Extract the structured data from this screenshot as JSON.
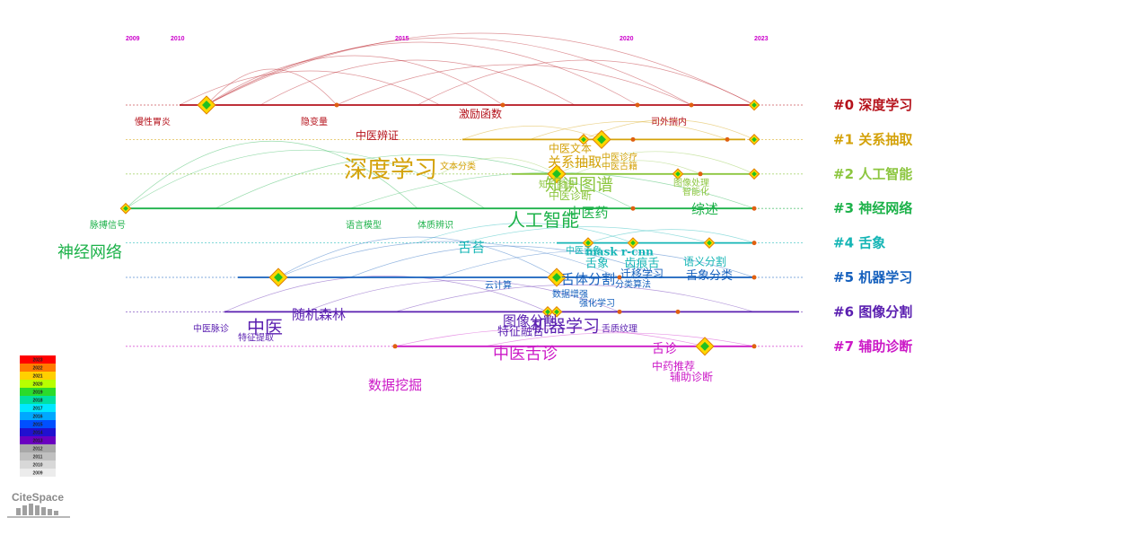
{
  "years": [
    {
      "label": "2009",
      "year": 2009
    },
    {
      "label": "2010",
      "year": 2010
    },
    {
      "label": "2015",
      "year": 2015
    },
    {
      "label": "2020",
      "year": 2020
    },
    {
      "label": "2023",
      "year": 2023
    }
  ],
  "year_label_color": "#cc00cc",
  "clusters": [
    {
      "id": "#0",
      "name": "深度学习",
      "color": "#b5121b",
      "start": 2010.2,
      "end": 2023
    },
    {
      "id": "#1",
      "name": "关系抽取",
      "color": "#d4a20a",
      "start": 2016.5,
      "end": 2022.8
    },
    {
      "id": "#2",
      "name": "人工智能",
      "color": "#8cc63f",
      "start": 2017.6,
      "end": 2023
    },
    {
      "id": "#3",
      "name": "神经网络",
      "color": "#1db24a",
      "start": 2009,
      "end": 2023
    },
    {
      "id": "#4",
      "name": "舌象",
      "color": "#14b5b5",
      "start": 2018.6,
      "end": 2023
    },
    {
      "id": "#5",
      "name": "机器学习",
      "color": "#1560bd",
      "start": 2011.5,
      "end": 2023
    },
    {
      "id": "#6",
      "name": "图像分割",
      "color": "#5a1fb0",
      "start": 2011.2,
      "end": 2024
    },
    {
      "id": "#7",
      "name": "辅助诊断",
      "color": "#cc1ac7",
      "start": 2015,
      "end": 2023
    }
  ],
  "nodes": [
    {
      "c": 0,
      "year": 2010.8,
      "size": "lg"
    },
    {
      "c": 0,
      "year": 2013.7,
      "size": "sm"
    },
    {
      "c": 0,
      "year": 2017.4,
      "size": "sm"
    },
    {
      "c": 0,
      "year": 2020.4,
      "size": "sm"
    },
    {
      "c": 0,
      "year": 2021.6,
      "size": "sm"
    },
    {
      "c": 0,
      "year": 2023,
      "size": "md"
    },
    {
      "c": 1,
      "year": 2019.2,
      "size": "md"
    },
    {
      "c": 1,
      "year": 2019.6,
      "size": "lg"
    },
    {
      "c": 1,
      "year": 2020.3,
      "size": "sm"
    },
    {
      "c": 1,
      "year": 2022.4,
      "size": "sm"
    },
    {
      "c": 1,
      "year": 2023,
      "size": "md"
    },
    {
      "c": 2,
      "year": 2018.6,
      "size": "lg"
    },
    {
      "c": 2,
      "year": 2021.3,
      "size": "md"
    },
    {
      "c": 2,
      "year": 2021.8,
      "size": "sm"
    },
    {
      "c": 2,
      "year": 2023,
      "size": "md"
    },
    {
      "c": 3,
      "year": 2009,
      "size": "md"
    },
    {
      "c": 3,
      "year": 2020.3,
      "size": "sm"
    },
    {
      "c": 3,
      "year": 2023,
      "size": "sm"
    },
    {
      "c": 4,
      "year": 2019.3,
      "size": "md"
    },
    {
      "c": 4,
      "year": 2020.3,
      "size": "md"
    },
    {
      "c": 4,
      "year": 2022.0,
      "size": "md"
    },
    {
      "c": 4,
      "year": 2023,
      "size": "sm"
    },
    {
      "c": 5,
      "year": 2012.4,
      "size": "lg"
    },
    {
      "c": 5,
      "year": 2018.6,
      "size": "lg"
    },
    {
      "c": 5,
      "year": 2020.0,
      "size": "sm"
    },
    {
      "c": 5,
      "year": 2023,
      "size": "sm"
    },
    {
      "c": 6,
      "year": 2018.4,
      "size": "md"
    },
    {
      "c": 6,
      "year": 2018.6,
      "size": "md"
    },
    {
      "c": 6,
      "year": 2020.0,
      "size": "sm"
    },
    {
      "c": 6,
      "year": 2021.3,
      "size": "sm"
    },
    {
      "c": 7,
      "year": 2015,
      "size": "sm"
    },
    {
      "c": 7,
      "year": 2021.9,
      "size": "lg"
    },
    {
      "c": 7,
      "year": 2023,
      "size": "sm"
    }
  ],
  "labels": [
    {
      "text": "慢性胃炎",
      "c": 0,
      "year": 2009.6,
      "dy": 22,
      "fs": 10
    },
    {
      "text": "隐变量",
      "c": 0,
      "year": 2013.2,
      "dy": 22,
      "fs": 10
    },
    {
      "text": "激励函数",
      "c": 0,
      "year": 2016.9,
      "dy": 14,
      "fs": 12
    },
    {
      "text": "司外揣内",
      "c": 0,
      "year": 2021.1,
      "dy": 22,
      "fs": 10
    },
    {
      "text": "中医辨证",
      "c": 0,
      "year": 2014.6,
      "dy": 38,
      "fs": 12
    },
    {
      "text": "中医文本",
      "c": 1,
      "year": 2018.9,
      "dy": 14,
      "fs": 12
    },
    {
      "text": "中医诊疗",
      "c": 1,
      "year": 2020.0,
      "dy": 23,
      "fs": 10
    },
    {
      "text": "中医古籍",
      "c": 1,
      "year": 2020.0,
      "dy": 33,
      "fs": 10
    },
    {
      "text": "文本分类",
      "c": 1,
      "year": 2016.4,
      "dy": 33,
      "fs": 10
    },
    {
      "text": "关系抽取",
      "c": 1,
      "year": 2019.0,
      "dy": 30,
      "fs": 15
    },
    {
      "text": "深度学习",
      "c": 1,
      "year": 2014.9,
      "dy": 42,
      "fs": 26
    },
    {
      "text": "知识图谱",
      "c": 2,
      "year": 2019.1,
      "dy": 18,
      "fs": 19
    },
    {
      "text": "知识图谱",
      "c": 2,
      "year": 2018.6,
      "dy": 15,
      "fs": 10
    },
    {
      "text": "中医诊断",
      "c": 2,
      "year": 2018.9,
      "dy": 28,
      "fs": 12
    },
    {
      "text": "图像处理",
      "c": 2,
      "year": 2021.6,
      "dy": 13,
      "fs": 10
    },
    {
      "text": "智能化",
      "c": 2,
      "year": 2021.7,
      "dy": 23,
      "fs": 10
    },
    {
      "text": "中医药",
      "c": 3,
      "year": 2019.3,
      "dy": 10,
      "fs": 15
    },
    {
      "text": "综述",
      "c": 3,
      "year": 2021.9,
      "dy": 6,
      "fs": 15
    },
    {
      "text": "人工智能",
      "c": 3,
      "year": 2018.3,
      "dy": 20,
      "fs": 20
    },
    {
      "text": "脉搏信号",
      "c": 3,
      "year": 2008.6,
      "dy": 22,
      "fs": 10
    },
    {
      "text": "语言模型",
      "c": 3,
      "year": 2014.3,
      "dy": 22,
      "fs": 10
    },
    {
      "text": "体质辨识",
      "c": 3,
      "year": 2015.9,
      "dy": 22,
      "fs": 10
    },
    {
      "text": "神经网络",
      "c": 3,
      "year": 2008.2,
      "dy": 55,
      "fs": 18
    },
    {
      "text": "舌苔",
      "c": 4,
      "year": 2016.7,
      "dy": 10,
      "fs": 15
    },
    {
      "text": "中医舌象",
      "c": 4,
      "year": 2019.2,
      "dy": 12,
      "fs": 10
    },
    {
      "text": "mask r-cnn",
      "c": 4,
      "year": 2020.0,
      "dy": 14,
      "fs": 12,
      "bold": true
    },
    {
      "text": "舌象",
      "c": 4,
      "year": 2019.5,
      "dy": 27,
      "fs": 13
    },
    {
      "text": "齿痕舌",
      "c": 4,
      "year": 2020.5,
      "dy": 27,
      "fs": 13
    },
    {
      "text": "语义分割",
      "c": 4,
      "year": 2021.9,
      "dy": 25,
      "fs": 12
    },
    {
      "text": "舌体分割",
      "c": 5,
      "year": 2019.3,
      "dy": 7,
      "fs": 15
    },
    {
      "text": "迁移学习",
      "c": 5,
      "year": 2020.5,
      "dy": 0,
      "fs": 12
    },
    {
      "text": "舌象分类",
      "c": 5,
      "year": 2022.0,
      "dy": 2,
      "fs": 13
    },
    {
      "text": "分类算法",
      "c": 5,
      "year": 2020.3,
      "dy": 11,
      "fs": 10
    },
    {
      "text": "云计算",
      "c": 5,
      "year": 2017.3,
      "dy": 12,
      "fs": 10
    },
    {
      "text": "数据增强",
      "c": 5,
      "year": 2018.9,
      "dy": 22,
      "fs": 10
    },
    {
      "text": "强化学习",
      "c": 5,
      "year": 2019.5,
      "dy": 32,
      "fs": 10
    },
    {
      "text": "随机森林",
      "c": 6,
      "year": 2013.3,
      "dy": 8,
      "fs": 15
    },
    {
      "text": "中医",
      "c": 6,
      "year": 2012.1,
      "dy": 24,
      "fs": 20
    },
    {
      "text": "中医脉诊",
      "c": 6,
      "year": 2010.9,
      "dy": 22,
      "fs": 10
    },
    {
      "text": "特征提取",
      "c": 6,
      "year": 2011.9,
      "dy": 32,
      "fs": 10
    },
    {
      "text": "图像分割",
      "c": 6,
      "year": 2018.0,
      "dy": 15,
      "fs": 15
    },
    {
      "text": "机器学习",
      "c": 6,
      "year": 2018.8,
      "dy": 22,
      "fs": 19
    },
    {
      "text": "特征融合",
      "c": 6,
      "year": 2017.8,
      "dy": 26,
      "fs": 13
    },
    {
      "text": "舌质纹理",
      "c": 6,
      "year": 2020.0,
      "dy": 22,
      "fs": 10
    },
    {
      "text": "中医舌诊",
      "c": 7,
      "year": 2017.9,
      "dy": 14,
      "fs": 18
    },
    {
      "text": "舌诊",
      "c": 7,
      "year": 2021.0,
      "dy": 7,
      "fs": 14
    },
    {
      "text": "中药推荐",
      "c": 7,
      "year": 2021.2,
      "dy": 26,
      "fs": 12
    },
    {
      "text": "辅助诊断",
      "c": 7,
      "year": 2021.6,
      "dy": 38,
      "fs": 12
    },
    {
      "text": "数据挖掘",
      "c": 7,
      "year": 2015.0,
      "dy": 48,
      "fs": 15
    }
  ],
  "legend": {
    "years": [
      "2023",
      "2022",
      "2021",
      "2020",
      "2019",
      "2018",
      "2017",
      "2016",
      "2015",
      "2014",
      "2013",
      "2012",
      "2011",
      "2010",
      "2009"
    ],
    "colors": [
      "#ff0000",
      "#ff7a00",
      "#ffd000",
      "#b8ff00",
      "#2bdb2b",
      "#00e0a0",
      "#00e8ff",
      "#00a8ff",
      "#0050ff",
      "#2010d0",
      "#6a00c0",
      "#a8a8a8",
      "#c0c0c0",
      "#d8d8d8",
      "#ececec"
    ]
  },
  "logo": {
    "text": "CiteSpace"
  }
}
